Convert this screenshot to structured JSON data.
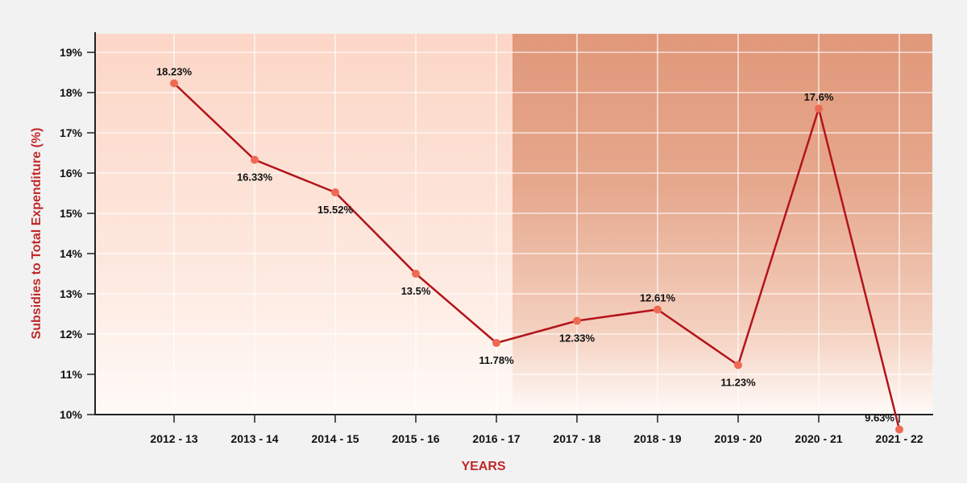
{
  "chart_data": {
    "type": "line",
    "title": "",
    "xlabel": "YEARS",
    "ylabel": "Subsidies to Total Expenditure (%)",
    "categories": [
      "2012 - 13",
      "2013 - 14",
      "2014 - 15",
      "2015 - 16",
      "2016 - 17",
      "2017 - 18",
      "2018 - 19",
      "2019 - 20",
      "2020 - 21",
      "2021 - 22"
    ],
    "series": [
      {
        "values": [
          18.23,
          16.33,
          15.52,
          13.5,
          11.78,
          12.33,
          12.61,
          11.23,
          17.6,
          9.63
        ],
        "labels": [
          "18.23%",
          "16.33%",
          "15.52%",
          "13.5%",
          "11.78%",
          "12.33%",
          "12.61%",
          "11.23%",
          "17.6%",
          "9.63%"
        ]
      }
    ],
    "yticks": [
      10,
      11,
      12,
      13,
      14,
      15,
      16,
      17,
      18,
      19
    ],
    "ytick_labels": [
      "10%",
      "11%",
      "12%",
      "13%",
      "14%",
      "15%",
      "16%",
      "17%",
      "18%",
      "19%"
    ],
    "ylim": [
      10,
      19
    ],
    "grid": true,
    "line_color": "#b3141b",
    "marker_color": "#ee6a53",
    "label_color": "#c0282a"
  }
}
